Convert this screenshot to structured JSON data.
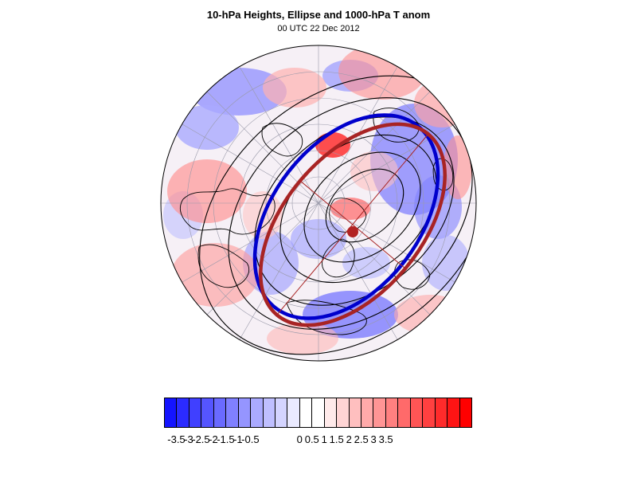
{
  "title": "10-hPa Heights, Ellipse and 1000-hPa T anom",
  "subtitle": "00 UTC 22 Dec 2012",
  "map": {
    "projection": "north-polar-stereographic",
    "field_shaded": "1000-hPa temperature anomaly",
    "field_contoured": "10-hPa geopotential height",
    "contour_color": "#000000",
    "ellipse_fill_line_color": "#b22222",
    "ellipse_outline_color": "#0000cc",
    "ellipse_center_marker_color": "#b22222"
  },
  "colorbar": {
    "colors": [
      "#1414ff",
      "#2b2bff",
      "#4040ff",
      "#5555ff",
      "#6a6aff",
      "#8080ff",
      "#9595ff",
      "#aaaaff",
      "#bfbfff",
      "#d4d4ff",
      "#eaeaff",
      "#ffffff",
      "#ffffff",
      "#ffeaea",
      "#ffd4d4",
      "#ffbfbf",
      "#ffaaaa",
      "#ff9595",
      "#ff8080",
      "#ff6a6a",
      "#ff5555",
      "#ff4040",
      "#ff2b2b",
      "#ff1414",
      "#ff0000"
    ],
    "labels": [
      "-3.5",
      "-3",
      "-2.5",
      "-2",
      "-1.5",
      "-1",
      "-0.5",
      "0",
      "0.5",
      "1",
      "1.5",
      "2",
      "2.5",
      "3",
      "3.5"
    ]
  }
}
